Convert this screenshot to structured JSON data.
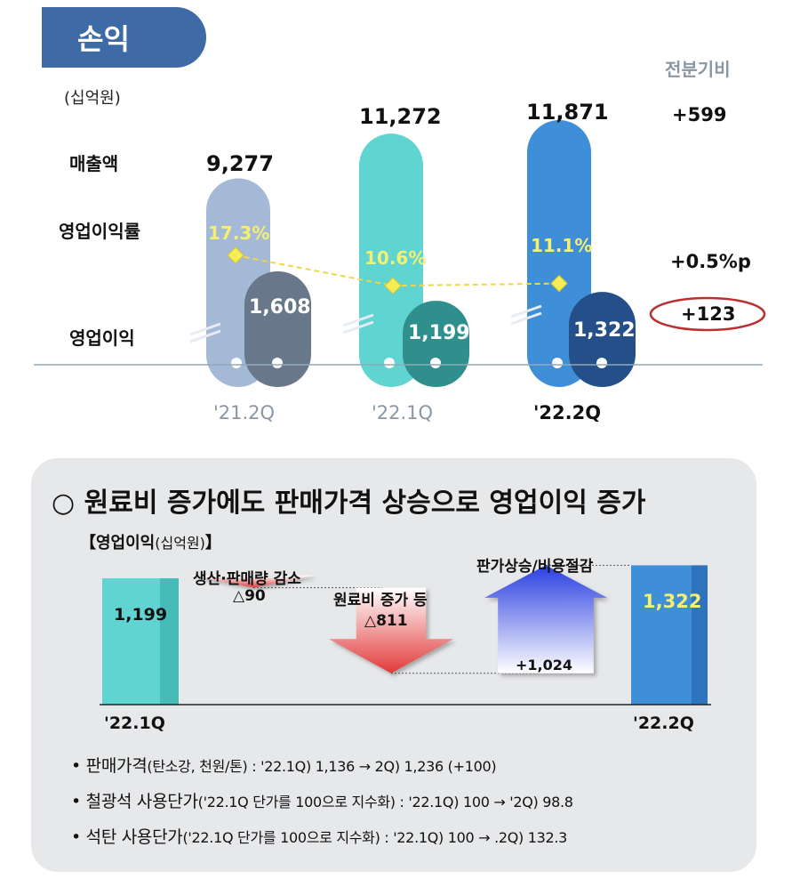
{
  "header": {
    "title": "손익",
    "unit": "(십억원)",
    "vs_label": "전분기비"
  },
  "row_labels": {
    "sales": "매출액",
    "margin": "영업이익률",
    "op_income": "영업이익"
  },
  "chart_data": {
    "type": "bar",
    "categories": [
      "'21.2Q",
      "'22.1Q",
      "'22.2Q"
    ],
    "series": [
      {
        "name": "매출액",
        "values": [
          9277,
          11272,
          11871
        ],
        "labels": [
          "9,277",
          "11,272",
          "11,871"
        ]
      },
      {
        "name": "영업이익",
        "values": [
          1608,
          1199,
          1322
        ],
        "labels": [
          "1,608",
          "1,199",
          "1,322"
        ]
      },
      {
        "name": "영업이익률",
        "values": [
          17.3,
          10.6,
          11.1
        ],
        "labels": [
          "17.3%",
          "10.6%",
          "11.1%"
        ]
      }
    ],
    "category_labels": [
      "'21.2Q",
      "'22.1Q",
      "'22.2Q"
    ],
    "qoq": {
      "sales": "+599",
      "margin": "+0.5%p",
      "op_income": "+123"
    },
    "colors": {
      "sales": [
        "#a3b9d6",
        "#5fd4d1",
        "#3f8fd8"
      ],
      "op_income": [
        "#68788a",
        "#2e8f8c",
        "#244f88"
      ],
      "margin_line": "#f1d64a"
    }
  },
  "waterfall": {
    "headline": "○ 원료비 증가에도 판매가격 상승으로 영업이익 증가",
    "title_main": "【영업이익",
    "title_unit": "(십억원)",
    "title_end": "】",
    "start": {
      "label": "'22.1Q",
      "value": 1199,
      "text": "1,199"
    },
    "end": {
      "label": "'22.2Q",
      "value": 1322,
      "text": "1,322"
    },
    "steps": [
      {
        "name": "생산·판매량 감소",
        "value": -90,
        "text": "△90"
      },
      {
        "name": "원료비 증가 등",
        "value": -811,
        "text": "△811"
      },
      {
        "name": "판가상승/비용절감",
        "value": 1024,
        "text": "+1,024"
      }
    ],
    "colors": {
      "start": "#5fd4d1",
      "end": "#3f8fd8",
      "down": "#e23a3a",
      "up": "#2a3fe0"
    }
  },
  "bullets": [
    {
      "main": "판매가격",
      "small": "(탄소강, 천원/톤) : '22.1Q) 1,136 → 2Q) 1,236 (+100)"
    },
    {
      "main": "철광석 사용단가",
      "small": "('22.1Q 단가를 100으로 지수화) : '22.1Q) 100 → '2Q) 98.8"
    },
    {
      "main": "석탄 사용단가",
      "small": "('22.1Q 단가를 100으로 지수화) : '22.1Q) 100 → .2Q) 132.3"
    }
  ]
}
